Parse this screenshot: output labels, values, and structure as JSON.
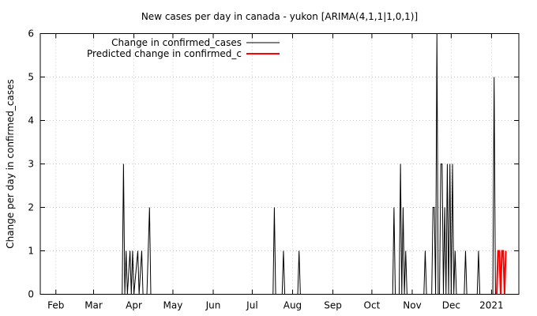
{
  "chart_data": {
    "type": "line",
    "title": "New cases per day in canada - yukon [ARIMA(4,1,1|1,0,1)]",
    "ylabel": "Change per day in confirmed_cases",
    "xlabel": "",
    "x_tick_labels": [
      "Feb",
      "Mar",
      "Apr",
      "May",
      "Jun",
      "Jul",
      "Aug",
      "Sep",
      "Oct",
      "Nov",
      "Dec",
      "2021"
    ],
    "x_tick_dates": [
      "2020-02-01",
      "2020-03-01",
      "2020-04-01",
      "2020-05-01",
      "2020-06-01",
      "2020-07-01",
      "2020-08-01",
      "2020-09-01",
      "2020-10-01",
      "2020-11-01",
      "2020-12-01",
      "2021-01-01"
    ],
    "xlim": [
      "2020-01-20",
      "2021-01-22"
    ],
    "ylim": [
      0,
      6
    ],
    "y_ticks": [
      0,
      1,
      2,
      3,
      4,
      5,
      6
    ],
    "grid": true,
    "legend_position": "top-left",
    "series": [
      {
        "name": "Change in confirmed_cases",
        "color": "#000000",
        "points": [
          [
            "2020-01-23",
            0
          ],
          [
            "2020-03-23",
            0
          ],
          [
            "2020-03-24",
            3
          ],
          [
            "2020-03-25",
            0
          ],
          [
            "2020-03-26",
            1
          ],
          [
            "2020-03-27",
            0
          ],
          [
            "2020-03-29",
            1
          ],
          [
            "2020-03-30",
            0
          ],
          [
            "2020-03-31",
            1
          ],
          [
            "2020-04-01",
            0
          ],
          [
            "2020-04-04",
            1
          ],
          [
            "2020-04-05",
            0
          ],
          [
            "2020-04-07",
            1
          ],
          [
            "2020-04-08",
            0
          ],
          [
            "2020-04-11",
            0
          ],
          [
            "2020-04-12",
            1
          ],
          [
            "2020-04-13",
            2
          ],
          [
            "2020-04-14",
            0
          ],
          [
            "2020-07-17",
            0
          ],
          [
            "2020-07-18",
            2
          ],
          [
            "2020-07-19",
            0
          ],
          [
            "2020-07-24",
            0
          ],
          [
            "2020-07-25",
            1
          ],
          [
            "2020-07-26",
            0
          ],
          [
            "2020-08-05",
            0
          ],
          [
            "2020-08-06",
            1
          ],
          [
            "2020-08-07",
            0
          ],
          [
            "2020-10-17",
            0
          ],
          [
            "2020-10-18",
            2
          ],
          [
            "2020-10-19",
            0
          ],
          [
            "2020-10-22",
            0
          ],
          [
            "2020-10-23",
            3
          ],
          [
            "2020-10-24",
            0
          ],
          [
            "2020-10-25",
            2
          ],
          [
            "2020-10-26",
            0
          ],
          [
            "2020-10-27",
            1
          ],
          [
            "2020-10-28",
            0
          ],
          [
            "2020-11-10",
            0
          ],
          [
            "2020-11-11",
            1
          ],
          [
            "2020-11-12",
            0
          ],
          [
            "2020-11-16",
            0
          ],
          [
            "2020-11-17",
            2
          ],
          [
            "2020-11-18",
            2
          ],
          [
            "2020-11-19",
            0
          ],
          [
            "2020-11-20",
            6
          ],
          [
            "2020-11-21",
            0
          ],
          [
            "2020-11-22",
            0
          ],
          [
            "2020-11-23",
            3
          ],
          [
            "2020-11-24",
            3
          ],
          [
            "2020-11-25",
            0
          ],
          [
            "2020-11-26",
            2
          ],
          [
            "2020-11-27",
            0
          ],
          [
            "2020-11-28",
            3
          ],
          [
            "2020-11-29",
            0
          ],
          [
            "2020-11-30",
            3
          ],
          [
            "2020-12-01",
            0
          ],
          [
            "2020-12-02",
            3
          ],
          [
            "2020-12-03",
            0
          ],
          [
            "2020-12-04",
            1
          ],
          [
            "2020-12-05",
            0
          ],
          [
            "2020-12-11",
            0
          ],
          [
            "2020-12-12",
            1
          ],
          [
            "2020-12-13",
            0
          ],
          [
            "2020-12-21",
            0
          ],
          [
            "2020-12-22",
            1
          ],
          [
            "2020-12-23",
            0
          ],
          [
            "2021-01-02",
            0
          ],
          [
            "2021-01-03",
            5
          ],
          [
            "2021-01-04",
            0
          ]
        ]
      },
      {
        "name": "Predicted change in confirmed_c",
        "color": "#ff0000",
        "points": [
          [
            "2021-01-05",
            0
          ],
          [
            "2021-01-06",
            1
          ],
          [
            "2021-01-07",
            1
          ],
          [
            "2021-01-08",
            0
          ],
          [
            "2021-01-09",
            1
          ],
          [
            "2021-01-10",
            1
          ],
          [
            "2021-01-11",
            0
          ],
          [
            "2021-01-12",
            1
          ]
        ]
      }
    ]
  }
}
